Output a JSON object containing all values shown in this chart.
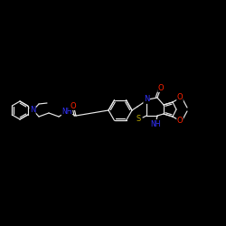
{
  "bg_color": "#000000",
  "bond_color": "#e8e8e8",
  "atom_colors": {
    "N": "#3333ff",
    "O": "#ff2200",
    "S": "#bbaa00",
    "H_color": "#e8e8e8"
  },
  "figsize": [
    2.5,
    2.5
  ],
  "dpi": 100
}
